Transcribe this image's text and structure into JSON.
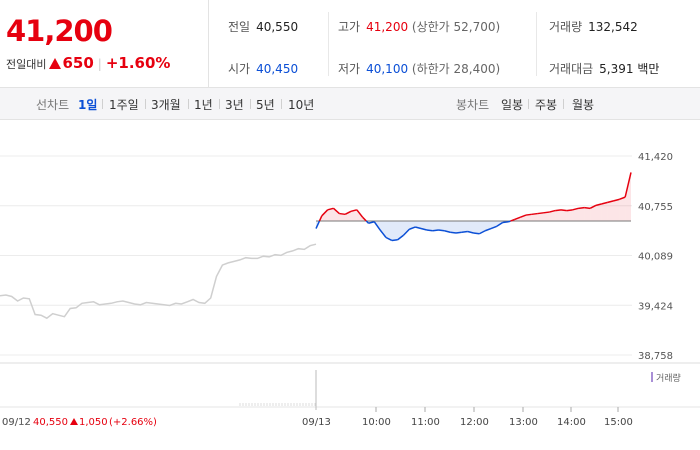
{
  "summary": {
    "current_price": "41,200",
    "change_label": "전일대비",
    "change_amount": "650",
    "change_rate": "+1.60%"
  },
  "stats": {
    "prev_close_label": "전일",
    "prev_close": "40,550",
    "open_label": "시가",
    "open": "40,450",
    "high_label": "고가",
    "high": "41,200",
    "upper_limit": "(상한가 52,700)",
    "low_label": "저가",
    "low": "40,100",
    "lower_limit": "(하한가 28,400)",
    "volume_label": "거래량",
    "volume": "132,542",
    "amount_label": "거래대금",
    "amount": "5,391 백만"
  },
  "toolbar": {
    "line_label": "선차트",
    "periods": [
      "1일",
      "1주일",
      "3개월",
      "1년",
      "3년",
      "5년",
      "10년"
    ],
    "candle_label": "봉차트",
    "candles": [
      "일봉",
      "주봉",
      "월봉"
    ]
  },
  "colors": {
    "up": "#e6000f",
    "down": "#0b4fd6",
    "prev_day_line": "#cfcfcf"
  },
  "chart_data": {
    "type": "line",
    "y_ticks": [
      "41,420",
      "40,755",
      "40,089",
      "39,424",
      "38,758"
    ],
    "ylim": [
      38758,
      41420
    ],
    "x_ticks": [
      "09/12",
      "09/13",
      "10:00",
      "11:00",
      "12:00",
      "13:00",
      "14:00",
      "15:00"
    ],
    "prev_day_footer": "09/12",
    "prev_day_close": "40,550",
    "prev_day_change": "1,050",
    "prev_day_rate": "(+2.66%)",
    "volume_legend": "거래량",
    "baseline": 40550,
    "series": [
      {
        "segment": "09/12",
        "y": [
          39550,
          39560,
          39540,
          39480,
          39520,
          39510,
          39300,
          39290,
          39250,
          39310,
          39290,
          39270,
          39380,
          39390,
          39450,
          39460,
          39470,
          39430,
          39440,
          39450,
          39470,
          39480,
          39460,
          39440,
          39430,
          39460,
          39450,
          39440,
          39430,
          39420,
          39450,
          39440,
          39470,
          39500,
          39460,
          39450,
          39520,
          39810,
          39960,
          39990,
          40010,
          40030,
          40060,
          40050,
          40050,
          40080,
          40070,
          40100,
          40090,
          40130,
          40150,
          40180,
          40170,
          40220,
          40240
        ]
      },
      {
        "segment": "09/13",
        "y": [
          40450,
          40620,
          40700,
          40720,
          40650,
          40640,
          40680,
          40700,
          40600,
          40520,
          40540,
          40430,
          40330,
          40290,
          40300,
          40360,
          40440,
          40470,
          40450,
          40430,
          40420,
          40430,
          40420,
          40400,
          40390,
          40400,
          40410,
          40390,
          40380,
          40420,
          40450,
          40480,
          40530,
          40540,
          40570,
          40600,
          40630,
          40640,
          40650,
          40660,
          40670,
          40690,
          40700,
          40690,
          40700,
          40720,
          40730,
          40720,
          40760,
          40780,
          40800,
          40820,
          40840,
          40870,
          41200
        ]
      }
    ]
  }
}
